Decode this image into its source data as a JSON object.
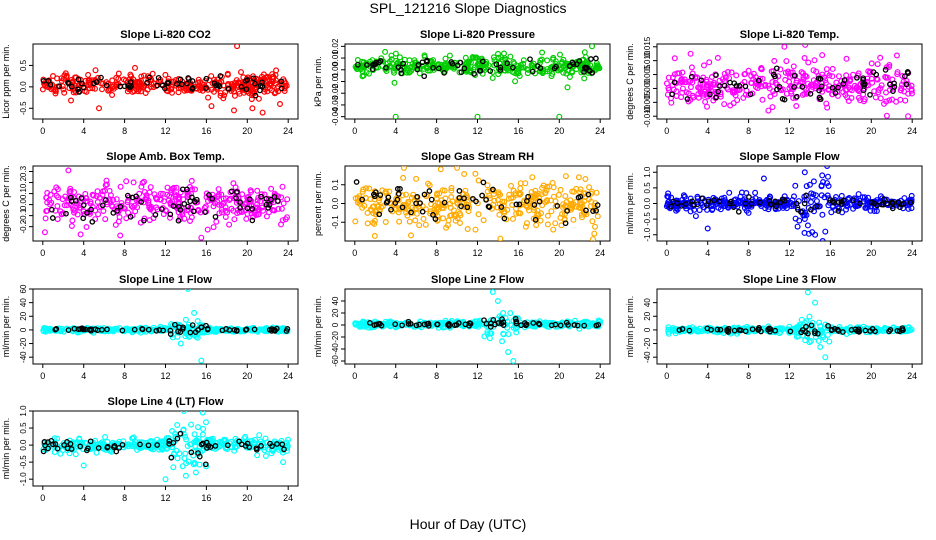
{
  "page": {
    "title": "SPL_121216  Slope Diagnostics",
    "xlabel": "Hour of Day (UTC)"
  },
  "chart_data": [
    {
      "type": "scatter",
      "title": "Slope Li-820 CO2",
      "ylabel": "Licor ppm per min.",
      "xlim": [
        0,
        24
      ],
      "xticks": [
        0,
        4,
        8,
        12,
        16,
        20,
        24
      ],
      "ylim": [
        -0.75,
        1.0
      ],
      "yticks": [
        -0.5,
        0.0,
        0.5
      ],
      "ytick_labels": [
        "-0.5",
        "0.0",
        "0.5"
      ],
      "main_color": "#ff0000",
      "accent_color": "#000000",
      "center": 0.05,
      "spread": 0.13,
      "outliers": [
        [
          19.0,
          0.95
        ],
        [
          16.5,
          -0.45
        ],
        [
          5.5,
          -0.5
        ],
        [
          18.7,
          -0.55
        ],
        [
          21.5,
          -0.6
        ],
        [
          23.2,
          -0.4
        ],
        [
          20.5,
          -0.5
        ]
      ]
    },
    {
      "type": "scatter",
      "title": "Slope Li-820 Pressure",
      "ylabel": "kPa per min.",
      "xlim": [
        0,
        24
      ],
      "xticks": [
        0,
        4,
        8,
        12,
        16,
        20,
        24
      ],
      "ylim": [
        -0.042,
        0.022
      ],
      "yticks": [
        -0.04,
        -0.03,
        -0.02,
        -0.01,
        0.0,
        0.01,
        0.02
      ],
      "ytick_labels": [
        "-0.04",
        "-0.03",
        "-0.02",
        "-0.01",
        "0.00",
        "0.01",
        "0.02"
      ],
      "main_color": "#00cc00",
      "accent_color": "#000000",
      "center": 0.003,
      "spread": 0.004,
      "outliers": [
        [
          4.0,
          -0.04
        ],
        [
          12.0,
          -0.04
        ],
        [
          20.0,
          -0.04
        ],
        [
          23.2,
          0.02
        ],
        [
          22.5,
          0.015
        ],
        [
          20.8,
          -0.015
        ]
      ]
    },
    {
      "type": "scatter",
      "title": "Slope Li-820 Temp.",
      "ylabel": "degrees C per min.",
      "xlim": [
        0,
        24
      ],
      "xticks": [
        0,
        4,
        8,
        12,
        16,
        20,
        24
      ],
      "ylim": [
        -0.011,
        0.016
      ],
      "yticks": [
        -0.01,
        -0.005,
        0.0,
        0.005,
        0.01,
        0.015
      ],
      "ytick_labels": [
        "-0.010",
        "-0.005",
        "0.000",
        "0.005",
        "0.010",
        "0.015"
      ],
      "main_color": "#ff00ff",
      "accent_color": "#000000",
      "center": 0.001,
      "spread": 0.004,
      "outliers": [
        [
          11.5,
          0.015
        ],
        [
          23.6,
          -0.01
        ],
        [
          15.2,
          0.012
        ],
        [
          5.0,
          0.011
        ]
      ]
    },
    {
      "type": "scatter",
      "title": "Slope Amb. Box Temp.",
      "ylabel": "degrees C per min.",
      "xlim": [
        0,
        24
      ],
      "xticks": [
        0,
        4,
        8,
        12,
        16,
        20,
        24
      ],
      "ylim": [
        -0.33,
        0.35
      ],
      "yticks": [
        -0.2,
        -0.1,
        0.0,
        0.1,
        0.2,
        0.3
      ],
      "ytick_labels": [
        "-0.2",
        "-0.1",
        "0.0",
        "0.1",
        "0.2",
        "0.3"
      ],
      "main_color": "#ff00ff",
      "accent_color": "#000000",
      "center": 0.01,
      "spread": 0.09,
      "outliers": [
        [
          2.5,
          0.31
        ],
        [
          3.7,
          -0.27
        ],
        [
          15.5,
          -0.3
        ],
        [
          0.2,
          -0.25
        ]
      ]
    },
    {
      "type": "scatter",
      "title": "Slope Gas Stream RH",
      "ylabel": "percent per min.",
      "xlim": [
        0,
        24
      ],
      "xticks": [
        0,
        4,
        8,
        12,
        16,
        20,
        24
      ],
      "ylim": [
        -0.2,
        0.2
      ],
      "yticks": [
        -0.1,
        0.0,
        0.1
      ],
      "ytick_labels": [
        "-0.1",
        "0.0",
        "0.1"
      ],
      "main_color": "#ffaa00",
      "accent_color": "#000000",
      "center": 0.0,
      "spread": 0.06,
      "outliers": [
        [
          4.8,
          0.19
        ],
        [
          10.0,
          0.19
        ],
        [
          23.3,
          -0.19
        ],
        [
          5.5,
          -0.17
        ]
      ]
    },
    {
      "type": "scatter",
      "title": "Slope Sample Flow",
      "ylabel": "ml/min per min.",
      "xlim": [
        0,
        24
      ],
      "xticks": [
        0,
        4,
        8,
        12,
        16,
        20,
        24
      ],
      "ylim": [
        -1.2,
        1.2
      ],
      "yticks": [
        -1.0,
        -0.5,
        0.0,
        0.5,
        1.0
      ],
      "ytick_labels": [
        "-1.0",
        "-0.5",
        "0.0",
        "0.5",
        "1.0"
      ],
      "main_color": "#0000ff",
      "accent_color": "#000000",
      "center": 0.0,
      "spread": 0.12,
      "outliers": [
        [
          4.0,
          -0.8
        ],
        [
          9.5,
          0.8
        ],
        [
          13.5,
          1.0
        ],
        [
          14.5,
          -1.0
        ],
        [
          15.2,
          0.9
        ],
        [
          15.5,
          -0.9
        ],
        [
          14.0,
          0.6
        ],
        [
          13.8,
          -0.7
        ]
      ]
    },
    {
      "type": "scatter",
      "title": "Slope Line 1 Flow",
      "ylabel": "ml/min per min.",
      "xlim": [
        0,
        24
      ],
      "xticks": [
        0,
        4,
        8,
        12,
        16,
        20,
        24
      ],
      "ylim": [
        -50,
        60
      ],
      "yticks": [
        -40,
        -20,
        0,
        20,
        40,
        60
      ],
      "ytick_labels": [
        "-40",
        "-20",
        "0",
        "20",
        "40",
        "60"
      ],
      "main_color": "#00ffff",
      "accent_color": "#000000",
      "center": 0.0,
      "spread": 1.5,
      "outliers": [
        [
          14.2,
          60
        ],
        [
          15.5,
          -45
        ],
        [
          14.8,
          25
        ],
        [
          13.5,
          -20
        ],
        [
          15.0,
          -10
        ],
        [
          14.0,
          15
        ]
      ]
    },
    {
      "type": "scatter",
      "title": "Slope Line 2 Flow",
      "ylabel": "ml/min per min.",
      "xlim": [
        0,
        24
      ],
      "xticks": [
        0,
        4,
        8,
        12,
        16,
        20,
        24
      ],
      "ylim": [
        -65,
        60
      ],
      "yticks": [
        -60,
        -40,
        -20,
        0,
        20,
        40
      ],
      "ytick_labels": [
        "-60",
        "-40",
        "-20",
        "0",
        "20",
        "40"
      ],
      "main_color": "#00ffff",
      "accent_color": "#000000",
      "center": 1.0,
      "spread": 2.5,
      "outliers": [
        [
          13.5,
          55
        ],
        [
          15.5,
          -60
        ],
        [
          14.0,
          40
        ],
        [
          15.0,
          -45
        ],
        [
          14.5,
          20
        ],
        [
          13.0,
          -15
        ]
      ]
    },
    {
      "type": "scatter",
      "title": "Slope Line 3 Flow",
      "ylabel": "ml/min per min.",
      "xlim": [
        0,
        24
      ],
      "xticks": [
        0,
        4,
        8,
        12,
        16,
        20,
        24
      ],
      "ylim": [
        -50,
        60
      ],
      "yticks": [
        -40,
        -20,
        0,
        20,
        40
      ],
      "ytick_labels": [
        "-40",
        "-20",
        "0",
        "20",
        "40"
      ],
      "main_color": "#00ffff",
      "accent_color": "#000000",
      "center": 0.0,
      "spread": 2.0,
      "outliers": [
        [
          13.8,
          55
        ],
        [
          15.5,
          -40
        ],
        [
          14.5,
          40
        ],
        [
          13.2,
          15
        ],
        [
          15.0,
          -25
        ]
      ]
    },
    {
      "type": "scatter",
      "title": "Slope Line 4 (LT) Flow",
      "ylabel": "ml/min per min.",
      "xlim": [
        0,
        24
      ],
      "xticks": [
        0,
        4,
        8,
        12,
        16,
        20,
        24
      ],
      "ylim": [
        -1.2,
        1.0
      ],
      "yticks": [
        -1.0,
        -0.5,
        0.0,
        0.5,
        1.0
      ],
      "ytick_labels": [
        "-1.0",
        "-0.5",
        "0.0",
        "0.5",
        "1.0"
      ],
      "main_color": "#00ffff",
      "accent_color": "#000000",
      "center": 0.0,
      "spread": 0.1,
      "outliers": [
        [
          4.0,
          -0.6
        ],
        [
          12.0,
          -1.0
        ],
        [
          13.8,
          1.0
        ],
        [
          14.0,
          -0.9
        ],
        [
          14.5,
          0.6
        ],
        [
          23.5,
          -0.5
        ]
      ]
    }
  ]
}
